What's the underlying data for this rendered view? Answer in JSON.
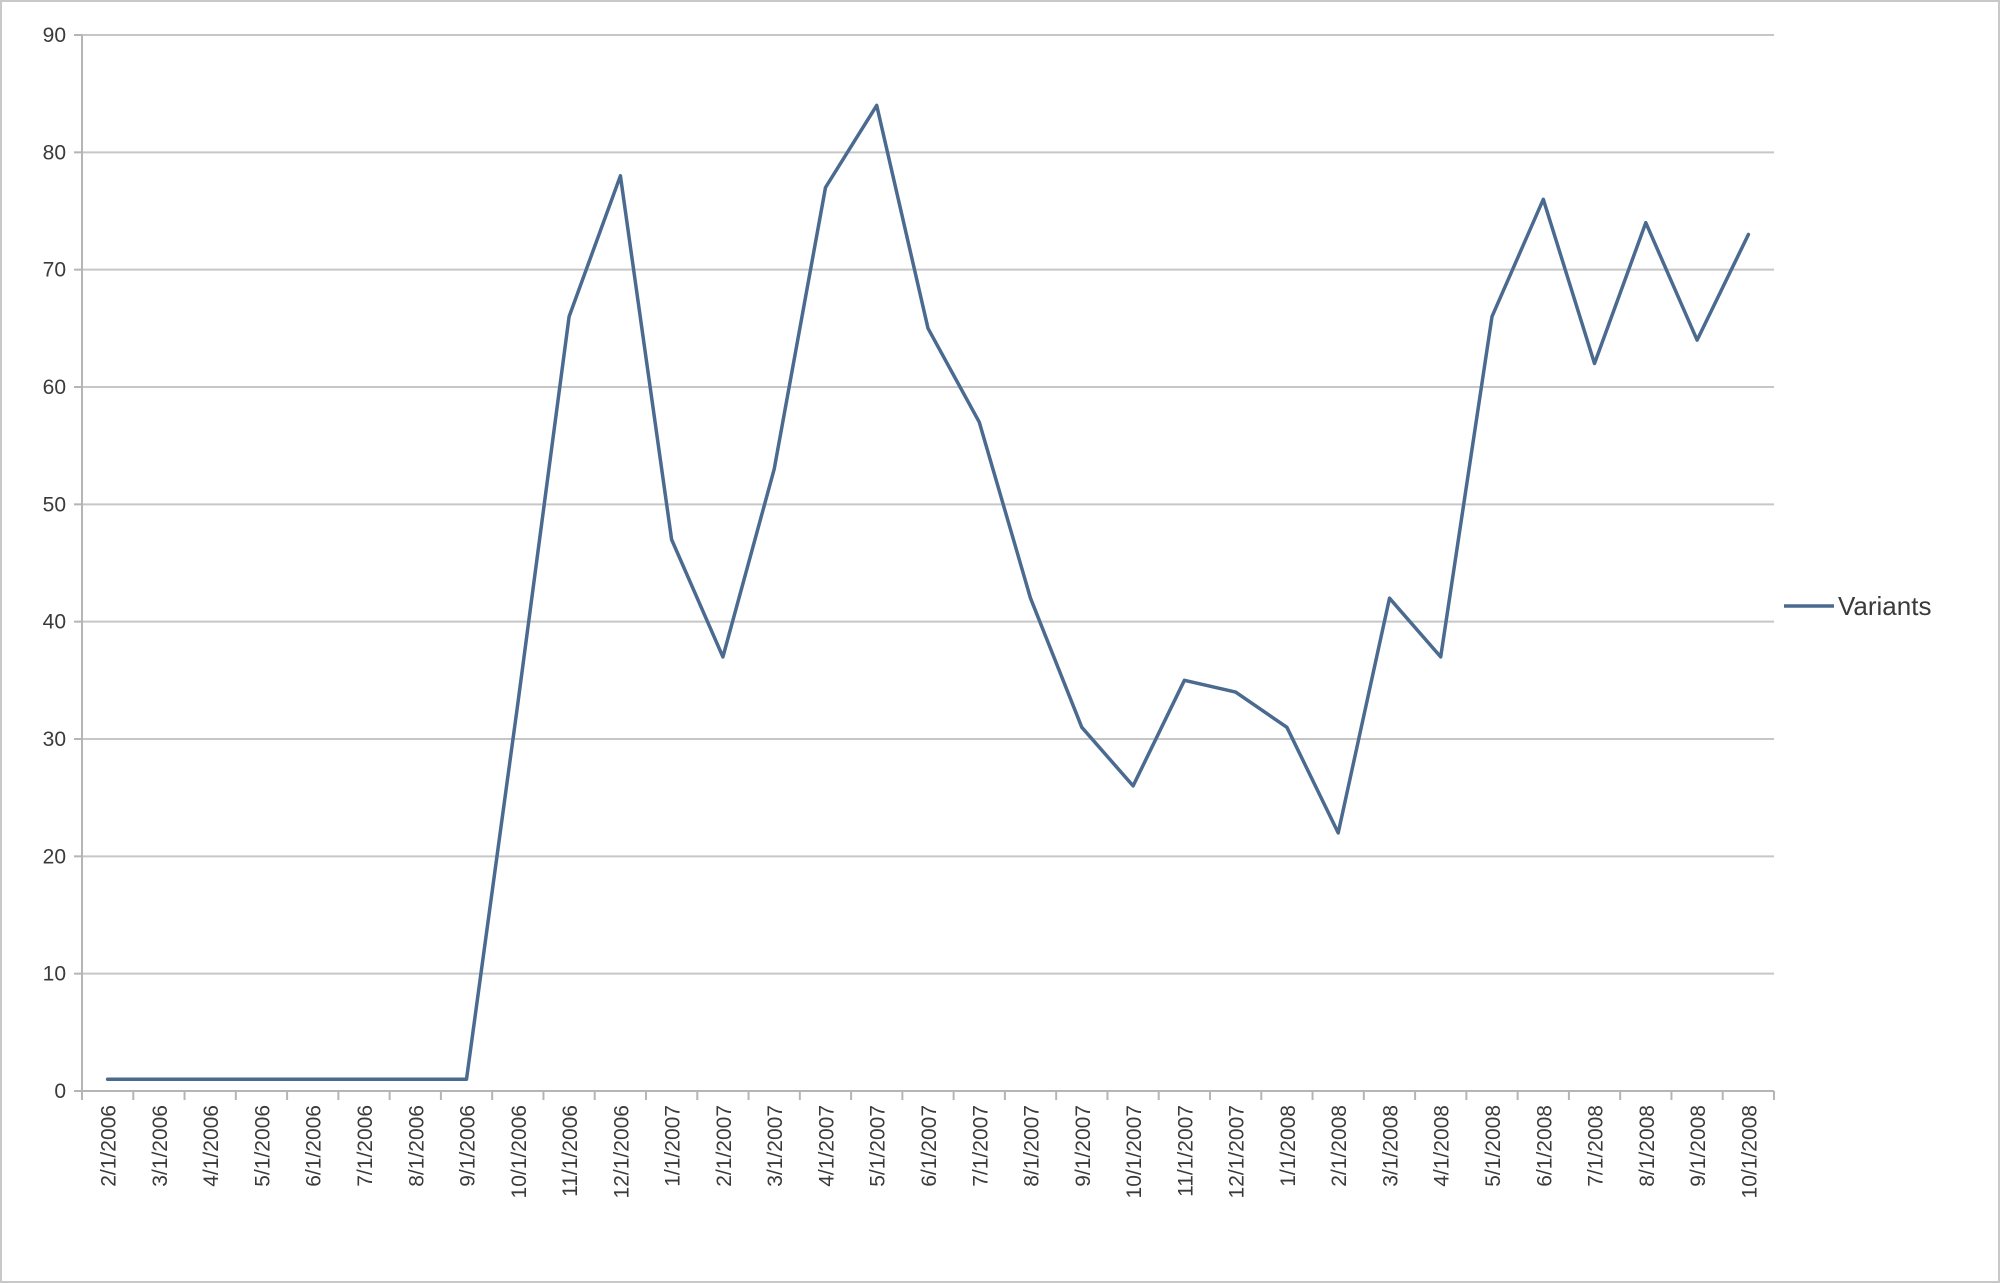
{
  "chart_data": {
    "type": "line",
    "title": "",
    "xlabel": "",
    "ylabel": "",
    "categories": [
      "2/1/2006",
      "3/1/2006",
      "4/1/2006",
      "5/1/2006",
      "6/1/2006",
      "7/1/2006",
      "8/1/2006",
      "9/1/2006",
      "10/1/2006",
      "11/1/2006",
      "12/1/2006",
      "1/1/2007",
      "2/1/2007",
      "3/1/2007",
      "4/1/2007",
      "5/1/2007",
      "6/1/2007",
      "7/1/2007",
      "8/1/2007",
      "9/1/2007",
      "10/1/2007",
      "11/1/2007",
      "12/1/2007",
      "1/1/2008",
      "2/1/2008",
      "3/1/2008",
      "4/1/2008",
      "5/1/2008",
      "6/1/2008",
      "7/1/2008",
      "8/1/2008",
      "9/1/2008",
      "10/1/2008"
    ],
    "series": [
      {
        "name": "Variants",
        "color": "#4a6a90",
        "values": [
          1,
          1,
          1,
          1,
          1,
          1,
          1,
          1,
          33,
          66,
          78,
          47,
          37,
          53,
          77,
          84,
          65,
          57,
          42,
          31,
          26,
          35,
          34,
          31,
          22,
          42,
          37,
          66,
          76,
          62,
          74,
          64,
          73
        ]
      }
    ],
    "yticks": [
      "0",
      "10",
      "20",
      "30",
      "40",
      "50",
      "60",
      "70",
      "80",
      "90"
    ],
    "ylim": [
      0,
      90
    ],
    "grid": "horizontal",
    "legend": "right",
    "colors": {
      "grid": "#c6c6c6",
      "axis": "#b5b5b5",
      "line": "#4a6a90"
    }
  }
}
